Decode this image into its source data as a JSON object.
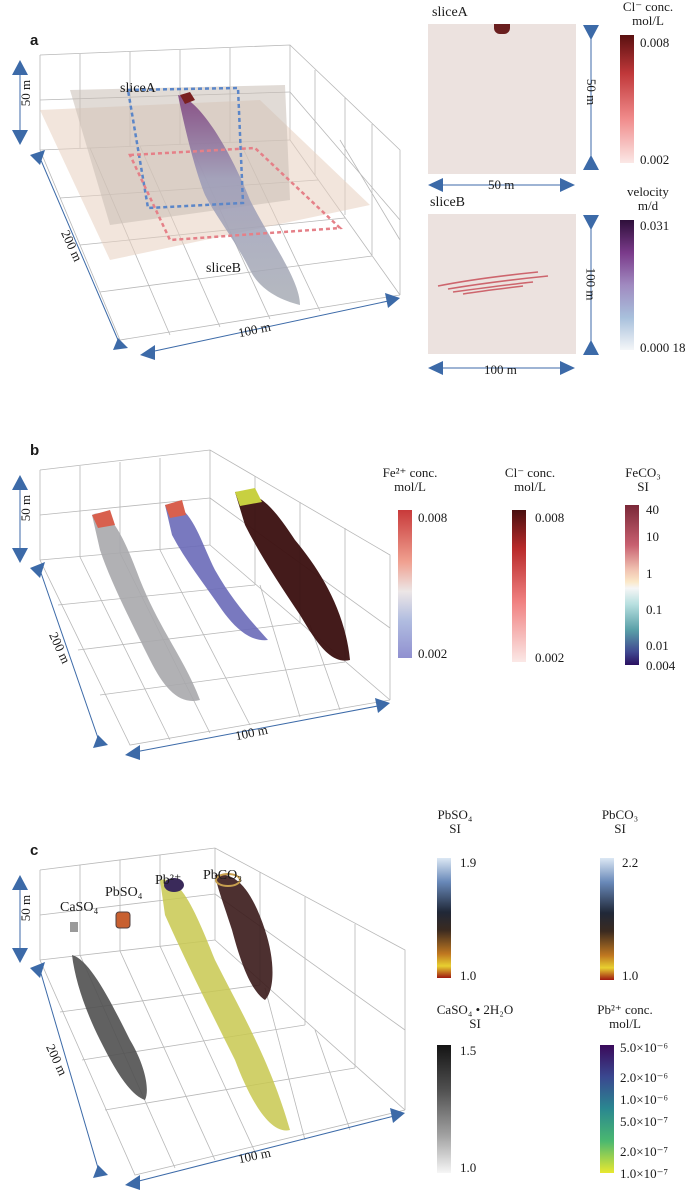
{
  "panel_a": {
    "letter": "a",
    "dim_height": "50 m",
    "dim_length": "200 m",
    "dim_width": "100 m",
    "slice_a_label": "sliceA",
    "slice_b_label": "sliceB",
    "slice_a": {
      "title": "sliceA",
      "width": "50 m",
      "height": "50 m"
    },
    "slice_b": {
      "title": "sliceB",
      "width": "100 m",
      "height": "100 m"
    },
    "cl_colorbar": {
      "title_line1": "Cl⁻ conc.",
      "title_line2": "mol/L",
      "max": "0.008",
      "min": "0.002"
    },
    "velocity_colorbar": {
      "title_line1": "velocity",
      "title_line2": "m/d",
      "max": "0.031",
      "min": "0.000 18"
    }
  },
  "panel_b": {
    "letter": "b",
    "dim_height": "50 m",
    "dim_length": "200 m",
    "dim_width": "100 m",
    "fe_colorbar": {
      "title_line1": "Fe²⁺ conc.",
      "title_line2": "mol/L",
      "max": "0.008",
      "min": "0.002"
    },
    "cl_colorbar": {
      "title_line1": "Cl⁻ conc.",
      "title_line2": "mol/L",
      "max": "0.008",
      "min": "0.002"
    },
    "feco3_colorbar": {
      "title_line1": "FeCO₃",
      "title_line2": "SI",
      "ticks": [
        "40",
        "10",
        "1",
        "0.1",
        "0.01",
        "0.004"
      ]
    }
  },
  "panel_c": {
    "letter": "c",
    "dim_height": "50 m",
    "dim_length": "200 m",
    "dim_width": "100 m",
    "labels": {
      "caso4": "CaSO₄",
      "pbso4": "PbSO₄",
      "pb": "Pb²⁺",
      "pbco3": "PbCO₃"
    },
    "pbso4_colorbar": {
      "title_line1": "PbSO₄",
      "title_line2": "SI",
      "max": "1.9",
      "min": "1.0"
    },
    "pbco3_colorbar": {
      "title_line1": "PbCO₃",
      "title_line2": "SI",
      "max": "2.2",
      "min": "1.0"
    },
    "gypsum_colorbar": {
      "title_line1": "CaSO₄ • 2H₂O",
      "title_line2": "SI",
      "max": "1.5",
      "min": "1.0"
    },
    "pb_colorbar": {
      "title_line1": "Pb²⁺ conc.",
      "title_line2": "mol/L",
      "ticks": [
        "5.0×10⁻⁶",
        "2.0×10⁻⁶",
        "1.0×10⁻⁶",
        "5.0×10⁻⁷",
        "2.0×10⁻⁷",
        "1.0×10⁻⁷"
      ]
    }
  }
}
